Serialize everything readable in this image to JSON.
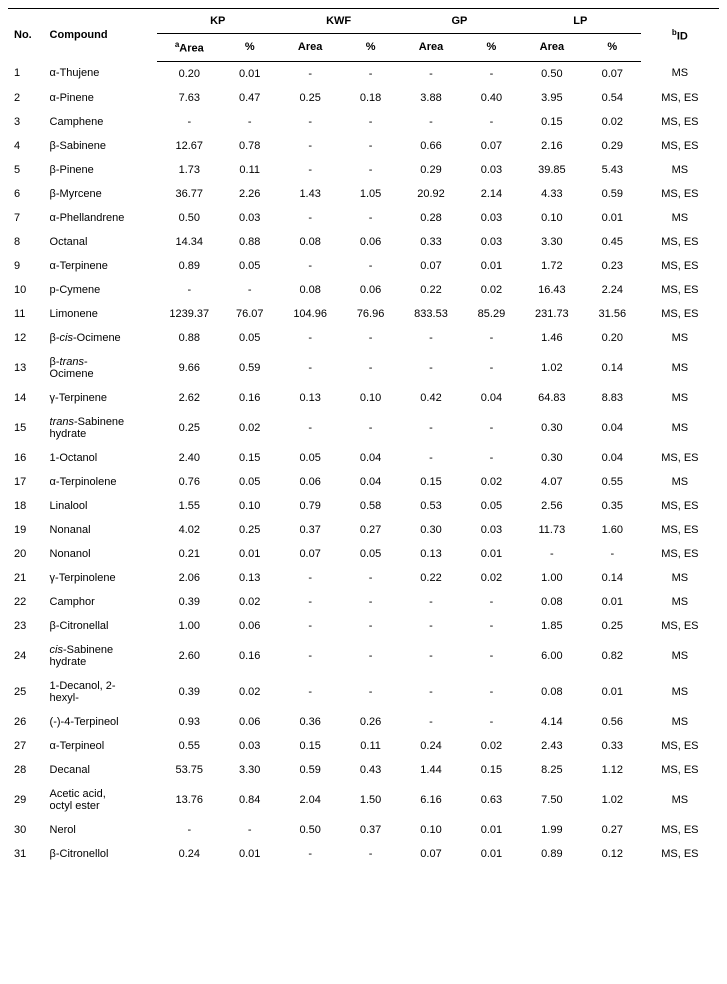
{
  "headers": {
    "no": "No.",
    "compound": "Compound",
    "groups": [
      "KP",
      "KWF",
      "GP",
      "LP"
    ],
    "area": "Area",
    "pct": "%",
    "id": "ID",
    "a_sup": "a",
    "b_sup": "b"
  },
  "rows": [
    {
      "no": "1",
      "compound": "α-Thujene",
      "kp_a": "0.20",
      "kp_p": "0.01",
      "kwf_a": "-",
      "kwf_p": "-",
      "gp_a": "-",
      "gp_p": "-",
      "lp_a": "0.50",
      "lp_p": "0.07",
      "id": "MS"
    },
    {
      "no": "2",
      "compound": "α-Pinene",
      "kp_a": "7.63",
      "kp_p": "0.47",
      "kwf_a": "0.25",
      "kwf_p": "0.18",
      "gp_a": "3.88",
      "gp_p": "0.40",
      "lp_a": "3.95",
      "lp_p": "0.54",
      "id": "MS, ES"
    },
    {
      "no": "3",
      "compound": "Camphene",
      "kp_a": "-",
      "kp_p": "-",
      "kwf_a": "-",
      "kwf_p": "-",
      "gp_a": "-",
      "gp_p": "-",
      "lp_a": "0.15",
      "lp_p": "0.02",
      "id": "MS, ES"
    },
    {
      "no": "4",
      "compound": "β-Sabinene",
      "kp_a": "12.67",
      "kp_p": "0.78",
      "kwf_a": "-",
      "kwf_p": "-",
      "gp_a": "0.66",
      "gp_p": "0.07",
      "lp_a": "2.16",
      "lp_p": "0.29",
      "id": "MS, ES"
    },
    {
      "no": "5",
      "compound": "β-Pinene",
      "kp_a": "1.73",
      "kp_p": "0.11",
      "kwf_a": "-",
      "kwf_p": "-",
      "gp_a": "0.29",
      "gp_p": "0.03",
      "lp_a": "39.85",
      "lp_p": "5.43",
      "id": "MS"
    },
    {
      "no": "6",
      "compound": "β-Myrcene",
      "kp_a": "36.77",
      "kp_p": "2.26",
      "kwf_a": "1.43",
      "kwf_p": "1.05",
      "gp_a": "20.92",
      "gp_p": "2.14",
      "lp_a": "4.33",
      "lp_p": "0.59",
      "id": "MS, ES"
    },
    {
      "no": "7",
      "compound": "α-Phellandrene",
      "kp_a": "0.50",
      "kp_p": "0.03",
      "kwf_a": "-",
      "kwf_p": "-",
      "gp_a": "0.28",
      "gp_p": "0.03",
      "lp_a": "0.10",
      "lp_p": "0.01",
      "id": "MS"
    },
    {
      "no": "8",
      "compound": "Octanal",
      "kp_a": "14.34",
      "kp_p": "0.88",
      "kwf_a": "0.08",
      "kwf_p": "0.06",
      "gp_a": "0.33",
      "gp_p": "0.03",
      "lp_a": "3.30",
      "lp_p": "0.45",
      "id": "MS, ES"
    },
    {
      "no": "9",
      "compound": "α-Terpinene",
      "kp_a": "0.89",
      "kp_p": "0.05",
      "kwf_a": "-",
      "kwf_p": "-",
      "gp_a": "0.07",
      "gp_p": "0.01",
      "lp_a": "1.72",
      "lp_p": "0.23",
      "id": "MS, ES"
    },
    {
      "no": "10",
      "compound": "p-Cymene",
      "kp_a": "-",
      "kp_p": "-",
      "kwf_a": "0.08",
      "kwf_p": "0.06",
      "gp_a": "0.22",
      "gp_p": "0.02",
      "lp_a": "16.43",
      "lp_p": "2.24",
      "id": "MS, ES"
    },
    {
      "no": "11",
      "compound": "Limonene",
      "kp_a": "1239.37",
      "kp_p": "76.07",
      "kwf_a": "104.96",
      "kwf_p": "76.96",
      "gp_a": "833.53",
      "gp_p": "85.29",
      "lp_a": "231.73",
      "lp_p": "31.56",
      "id": "MS, ES"
    },
    {
      "no": "12",
      "compound_html": "β-<span class=\"italic\">cis</span>-Ocimene",
      "kp_a": "0.88",
      "kp_p": "0.05",
      "kwf_a": "-",
      "kwf_p": "-",
      "gp_a": "-",
      "gp_p": "-",
      "lp_a": "1.46",
      "lp_p": "0.20",
      "id": "MS"
    },
    {
      "no": "13",
      "compound_html": "β-<span class=\"italic\">trans</span>-<br>Ocimene",
      "kp_a": "9.66",
      "kp_p": "0.59",
      "kwf_a": "-",
      "kwf_p": "-",
      "gp_a": "-",
      "gp_p": "-",
      "lp_a": "1.02",
      "lp_p": "0.14",
      "id": "MS"
    },
    {
      "no": "14",
      "compound": "γ-Terpinene",
      "kp_a": "2.62",
      "kp_p": "0.16",
      "kwf_a": "0.13",
      "kwf_p": "0.10",
      "gp_a": "0.42",
      "gp_p": "0.04",
      "lp_a": "64.83",
      "lp_p": "8.83",
      "id": "MS"
    },
    {
      "no": "15",
      "compound_html": "<span class=\"italic\">trans</span>-Sabinene<br>hydrate",
      "kp_a": "0.25",
      "kp_p": "0.02",
      "kwf_a": "-",
      "kwf_p": "-",
      "gp_a": "-",
      "gp_p": "-",
      "lp_a": "0.30",
      "lp_p": "0.04",
      "id": "MS"
    },
    {
      "no": "16",
      "compound": "1-Octanol",
      "kp_a": "2.40",
      "kp_p": "0.15",
      "kwf_a": "0.05",
      "kwf_p": "0.04",
      "gp_a": "-",
      "gp_p": "-",
      "lp_a": "0.30",
      "lp_p": "0.04",
      "id": "MS, ES"
    },
    {
      "no": "17",
      "compound": "α-Terpinolene",
      "kp_a": "0.76",
      "kp_p": "0.05",
      "kwf_a": "0.06",
      "kwf_p": "0.04",
      "gp_a": "0.15",
      "gp_p": "0.02",
      "lp_a": "4.07",
      "lp_p": "0.55",
      "id": "MS"
    },
    {
      "no": "18",
      "compound": "Linalool",
      "kp_a": "1.55",
      "kp_p": "0.10",
      "kwf_a": "0.79",
      "kwf_p": "0.58",
      "gp_a": "0.53",
      "gp_p": "0.05",
      "lp_a": "2.56",
      "lp_p": "0.35",
      "id": "MS, ES"
    },
    {
      "no": "19",
      "compound": "Nonanal",
      "kp_a": "4.02",
      "kp_p": "0.25",
      "kwf_a": "0.37",
      "kwf_p": "0.27",
      "gp_a": "0.30",
      "gp_p": "0.03",
      "lp_a": "11.73",
      "lp_p": "1.60",
      "id": "MS, ES"
    },
    {
      "no": "20",
      "compound": "Nonanol",
      "kp_a": "0.21",
      "kp_p": "0.01",
      "kwf_a": "0.07",
      "kwf_p": "0.05",
      "gp_a": "0.13",
      "gp_p": "0.01",
      "lp_a": "-",
      "lp_p": "-",
      "id": "MS, ES"
    },
    {
      "no": "21",
      "compound": "γ-Terpinolene",
      "kp_a": "2.06",
      "kp_p": "0.13",
      "kwf_a": "-",
      "kwf_p": "-",
      "gp_a": "0.22",
      "gp_p": "0.02",
      "lp_a": "1.00",
      "lp_p": "0.14",
      "id": "MS"
    },
    {
      "no": "22",
      "compound": "Camphor",
      "kp_a": "0.39",
      "kp_p": "0.02",
      "kwf_a": "-",
      "kwf_p": "-",
      "gp_a": "-",
      "gp_p": "-",
      "lp_a": "0.08",
      "lp_p": "0.01",
      "id": "MS"
    },
    {
      "no": "23",
      "compound": "β-Citronellal",
      "kp_a": "1.00",
      "kp_p": "0.06",
      "kwf_a": "-",
      "kwf_p": "-",
      "gp_a": "-",
      "gp_p": "-",
      "lp_a": "1.85",
      "lp_p": "0.25",
      "id": "MS, ES"
    },
    {
      "no": "24",
      "compound_html": "<span class=\"italic\">cis</span>-Sabinene<br>hydrate",
      "kp_a": "2.60",
      "kp_p": "0.16",
      "kwf_a": "-",
      "kwf_p": "-",
      "gp_a": "-",
      "gp_p": "-",
      "lp_a": "6.00",
      "lp_p": "0.82",
      "id": "MS"
    },
    {
      "no": "25",
      "compound_html": "1-Decanol, 2-<br>hexyl-",
      "kp_a": "0.39",
      "kp_p": "0.02",
      "kwf_a": "-",
      "kwf_p": "-",
      "gp_a": "-",
      "gp_p": "-",
      "lp_a": "0.08",
      "lp_p": "0.01",
      "id": "MS"
    },
    {
      "no": "26",
      "compound": "(-)-4-Terpineol",
      "kp_a": "0.93",
      "kp_p": "0.06",
      "kwf_a": "0.36",
      "kwf_p": "0.26",
      "gp_a": "-",
      "gp_p": "-",
      "lp_a": "4.14",
      "lp_p": "0.56",
      "id": "MS"
    },
    {
      "no": "27",
      "compound": "α-Terpineol",
      "kp_a": "0.55",
      "kp_p": "0.03",
      "kwf_a": "0.15",
      "kwf_p": "0.11",
      "gp_a": "0.24",
      "gp_p": "0.02",
      "lp_a": "2.43",
      "lp_p": "0.33",
      "id": "MS, ES"
    },
    {
      "no": "28",
      "compound": "Decanal",
      "kp_a": "53.75",
      "kp_p": "3.30",
      "kwf_a": "0.59",
      "kwf_p": "0.43",
      "gp_a": "1.44",
      "gp_p": "0.15",
      "lp_a": "8.25",
      "lp_p": "1.12",
      "id": "MS, ES"
    },
    {
      "no": "29",
      "compound_html": "Acetic acid,<br>octyl ester",
      "kp_a": "13.76",
      "kp_p": "0.84",
      "kwf_a": "2.04",
      "kwf_p": "1.50",
      "gp_a": "6.16",
      "gp_p": "0.63",
      "lp_a": "7.50",
      "lp_p": "1.02",
      "id": "MS"
    },
    {
      "no": "30",
      "compound": "Nerol",
      "kp_a": "-",
      "kp_p": "-",
      "kwf_a": "0.50",
      "kwf_p": "0.37",
      "gp_a": "0.10",
      "gp_p": "0.01",
      "lp_a": "1.99",
      "lp_p": "0.27",
      "id": "MS, ES"
    },
    {
      "no": "31",
      "compound": "β-Citronellol",
      "kp_a": "0.24",
      "kp_p": "0.01",
      "kwf_a": "-",
      "kwf_p": "-",
      "gp_a": "0.07",
      "gp_p": "0.01",
      "lp_a": "0.89",
      "lp_p": "0.12",
      "id": "MS, ES"
    }
  ]
}
